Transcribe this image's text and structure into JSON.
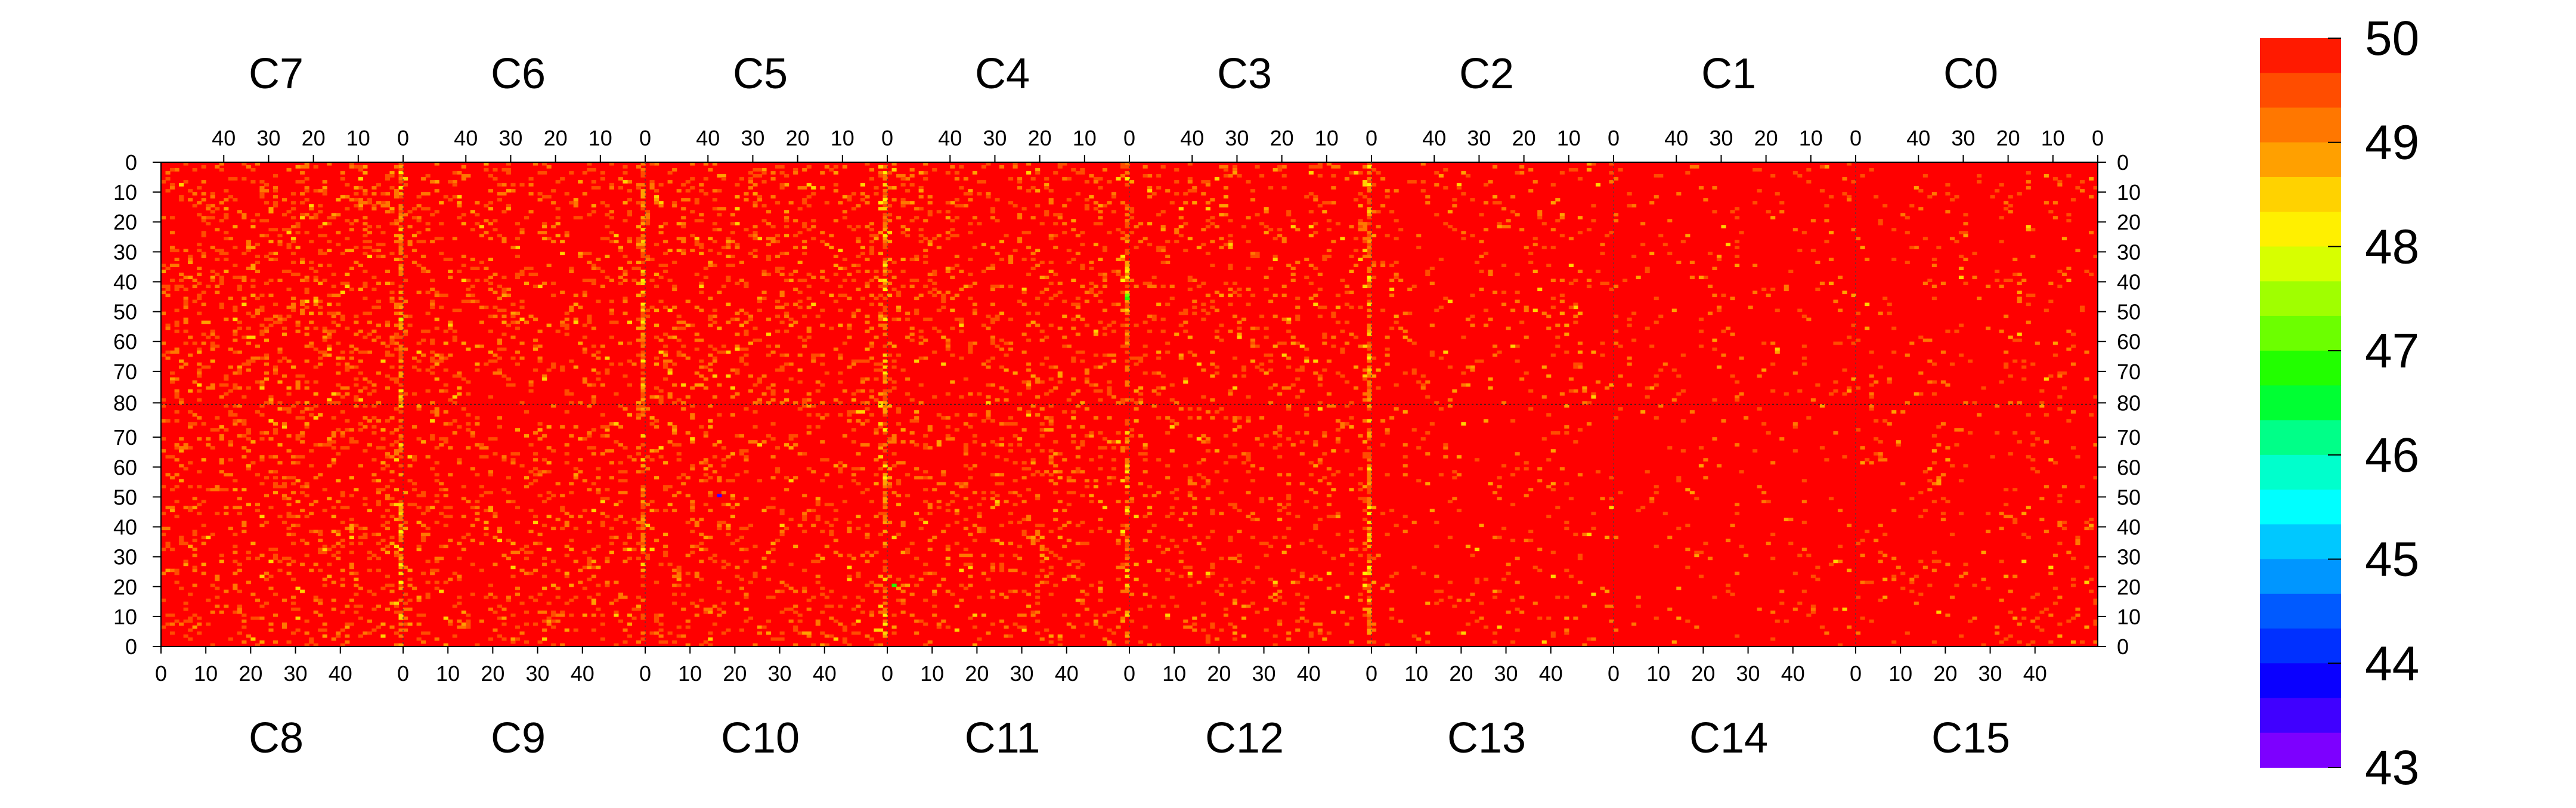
{
  "chart_data": {
    "type": "heatmap",
    "title": "",
    "xlabel": "",
    "ylabel": "",
    "top_chips": [
      "C7",
      "C6",
      "C5",
      "C4",
      "C3",
      "C2",
      "C1",
      "C0"
    ],
    "bottom_chips": [
      "C8",
      "C9",
      "C10",
      "C11",
      "C12",
      "C13",
      "C14",
      "C15"
    ],
    "columns_per_chip": 54,
    "rows_per_half": 81,
    "top_x_tick_labels": [
      "40",
      "30",
      "20",
      "10",
      "0"
    ],
    "bottom_x_tick_labels": [
      "0",
      "10",
      "20",
      "30",
      "40"
    ],
    "y_tick_labels_top_half": [
      "0",
      "10",
      "20",
      "30",
      "40",
      "50",
      "60",
      "70",
      "80"
    ],
    "y_tick_labels_bottom_half": [
      "70",
      "60",
      "50",
      "40",
      "30",
      "20",
      "10",
      "0"
    ],
    "color_scale": {
      "min": 43,
      "max": 50,
      "tick_labels": [
        "50",
        "49",
        "48",
        "47",
        "46",
        "45",
        "44",
        "43"
      ],
      "levels": [
        {
          "value": 49.75,
          "color": "#ff1a00"
        },
        {
          "value": 49.4,
          "color": "#ff4d00"
        },
        {
          "value": 49.1,
          "color": "#ff7700"
        },
        {
          "value": 48.75,
          "color": "#ffa000"
        },
        {
          "value": 48.4,
          "color": "#ffd200"
        },
        {
          "value": 48.1,
          "color": "#fff000"
        },
        {
          "value": 47.75,
          "color": "#d7ff00"
        },
        {
          "value": 47.4,
          "color": "#a0ff00"
        },
        {
          "value": 47.1,
          "color": "#6cff00"
        },
        {
          "value": 46.75,
          "color": "#22ff00"
        },
        {
          "value": 46.4,
          "color": "#00ff33"
        },
        {
          "value": 46.1,
          "color": "#00ff88"
        },
        {
          "value": 45.75,
          "color": "#00ffcc"
        },
        {
          "value": 45.4,
          "color": "#00ffff"
        },
        {
          "value": 45.1,
          "color": "#00c8ff"
        },
        {
          "value": 44.75,
          "color": "#0096ff"
        },
        {
          "value": 44.4,
          "color": "#005aff"
        },
        {
          "value": 44.1,
          "color": "#0030ff"
        },
        {
          "value": 43.75,
          "color": "#0a00ff"
        },
        {
          "value": 43.4,
          "color": "#4000ff"
        },
        {
          "value": 43.1,
          "color": "#7d00ff"
        }
      ]
    },
    "baseline_value": 50,
    "baseline_color": "#ff0000",
    "noise_density_by_chip": {
      "C7": 0.16,
      "C6": 0.13,
      "C5": 0.14,
      "C4": 0.12,
      "C3": 0.1,
      "C2": 0.07,
      "C1": 0.04,
      "C0": 0.05,
      "C8": 0.14,
      "C9": 0.12,
      "C10": 0.12,
      "C11": 0.12,
      "C12": 0.1,
      "C13": 0.05,
      "C14": 0.03,
      "C15": 0.05
    },
    "bright_stripe_columns": [
      {
        "chip": "C7",
        "column": 0,
        "density": 0.7
      },
      {
        "chip": "C6",
        "column": 0,
        "density": 0.6
      },
      {
        "chip": "C5",
        "column": 0,
        "density": 0.7
      },
      {
        "chip": "C4",
        "column": 0,
        "density": 0.6
      },
      {
        "chip": "C3",
        "column": 0,
        "density": 0.7
      },
      {
        "chip": "C8",
        "column": 53,
        "density": 0.55
      },
      {
        "chip": "C9",
        "column": 53,
        "density": 0.45
      },
      {
        "chip": "C10",
        "column": 53,
        "density": 0.6
      },
      {
        "chip": "C11",
        "column": 53,
        "density": 0.5
      },
      {
        "chip": "C12",
        "column": 53,
        "density": 0.6
      }
    ],
    "notable_cells": [
      {
        "chip": "C4",
        "row": 44,
        "column": 0,
        "value": 47.2
      },
      {
        "chip": "C4",
        "row": 45,
        "column": 0,
        "value": 46.7
      },
      {
        "chip": "C11",
        "row": 20,
        "column": 1,
        "value": 46.9
      },
      {
        "chip": "C10",
        "row": 50,
        "column": 16,
        "value": 43.4
      },
      {
        "chip": "C7",
        "row": 52,
        "column": 0,
        "value": 47.8
      }
    ],
    "legend_position": "right",
    "grid": false
  }
}
